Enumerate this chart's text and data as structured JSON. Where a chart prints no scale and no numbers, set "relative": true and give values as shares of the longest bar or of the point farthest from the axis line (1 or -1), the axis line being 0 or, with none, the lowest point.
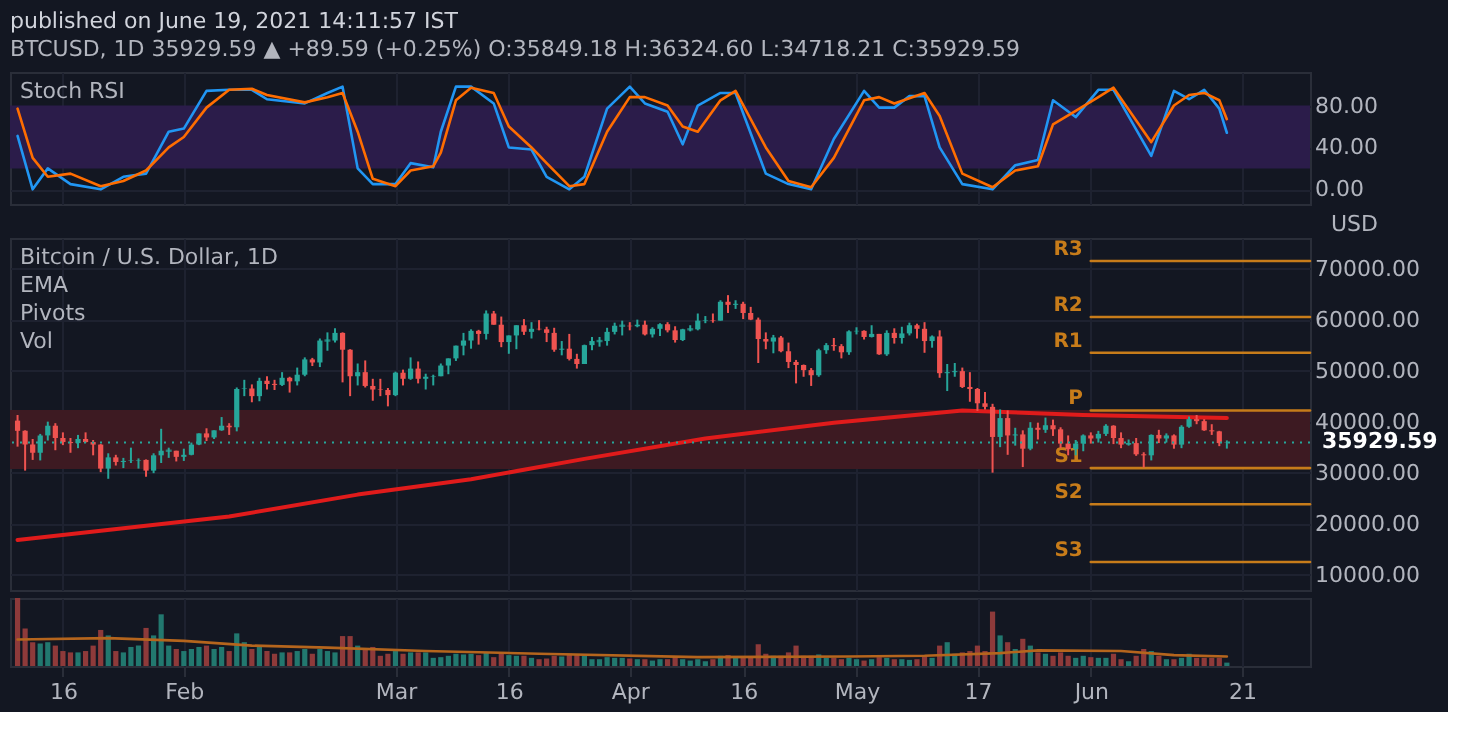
{
  "chart_data": [
    {
      "type": "line",
      "title": "published on June 19, 2021 14:11:57 IST",
      "subtitle": "BTCUSD, 1D  35929.59 ▲ +89.59 (+0.25%)  O:35849.18  H:36324.60  L:34718.21  C:35929.59",
      "annotations": [
        "Stoch RSI"
      ],
      "xlim": [
        "2021-01-09",
        "2021-06-30"
      ],
      "xticks": [
        {
          "value": "2021-01-16",
          "label": null
        },
        {
          "value": "2021-02-01",
          "label": null
        },
        {
          "value": "2021-03-01",
          "label": null
        },
        {
          "value": "2021-03-16",
          "label": null
        },
        {
          "value": "2021-04-01",
          "label": null
        },
        {
          "value": "2021-04-16",
          "label": null
        },
        {
          "value": "2021-05-01",
          "label": null
        },
        {
          "value": "2021-05-17",
          "label": null
        },
        {
          "value": "2021-06-01",
          "label": null
        },
        {
          "value": "2021-06-21",
          "label": null
        }
      ],
      "ylim": [
        -14,
        112
      ],
      "yticks": [
        {
          "value": 0,
          "label": "0.00"
        },
        {
          "value": 40,
          "label": "40.00"
        },
        {
          "value": 80,
          "label": "80.00"
        }
      ],
      "tick_labels": "y",
      "grid": true,
      "bands": [
        {
          "axis": "y",
          "from": 20,
          "to": 80,
          "color": "#2b1c4a"
        }
      ],
      "series": [
        {
          "color": "#2196f3",
          "x": [
            "2021-01-10",
            "2021-01-12",
            "2021-01-14",
            "2021-01-17",
            "2021-01-21",
            "2021-01-24",
            "2021-01-27",
            "2021-01-30",
            "2021-02-01",
            "2021-02-04",
            "2021-02-07",
            "2021-02-10",
            "2021-02-12",
            "2021-02-17",
            "2021-02-20",
            "2021-02-22",
            "2021-02-24",
            "2021-02-26",
            "2021-03-01",
            "2021-03-03",
            "2021-03-06",
            "2021-03-07",
            "2021-03-09",
            "2021-03-11",
            "2021-03-14",
            "2021-03-16",
            "2021-03-19",
            "2021-03-21",
            "2021-03-24",
            "2021-03-26",
            "2021-03-29",
            "2021-04-01",
            "2021-04-03",
            "2021-04-06",
            "2021-04-08",
            "2021-04-10",
            "2021-04-13",
            "2021-04-15",
            "2021-04-19",
            "2021-04-22",
            "2021-04-25",
            "2021-04-28",
            "2021-05-02",
            "2021-05-04",
            "2021-05-06",
            "2021-05-08",
            "2021-05-10",
            "2021-05-12",
            "2021-05-15",
            "2021-05-19",
            "2021-05-22",
            "2021-05-25",
            "2021-05-27",
            "2021-05-30",
            "2021-06-02",
            "2021-06-04",
            "2021-06-09",
            "2021-06-12",
            "2021-06-14",
            "2021-06-16",
            "2021-06-18",
            "2021-06-19"
          ],
          "values": [
            51,
            0,
            20,
            5,
            0,
            12,
            15,
            55,
            58,
            94,
            95,
            95,
            86,
            82,
            92,
            98,
            20,
            5,
            5,
            25,
            21,
            55,
            98,
            98,
            82,
            40,
            38,
            12,
            0,
            12,
            77,
            98,
            82,
            74,
            43,
            80,
            92,
            92,
            15,
            5,
            0,
            48,
            94,
            78,
            78,
            89,
            89,
            40,
            5,
            0,
            23,
            28,
            85,
            69,
            95,
            95,
            32,
            94,
            86,
            95,
            77,
            54
          ]
        },
        {
          "color": "#ff6d00",
          "x": [
            "2021-01-10",
            "2021-01-12",
            "2021-01-14",
            "2021-01-17",
            "2021-01-21",
            "2021-01-24",
            "2021-01-27",
            "2021-01-30",
            "2021-02-01",
            "2021-02-04",
            "2021-02-07",
            "2021-02-10",
            "2021-02-12",
            "2021-02-17",
            "2021-02-20",
            "2021-02-22",
            "2021-02-24",
            "2021-02-26",
            "2021-03-01",
            "2021-03-03",
            "2021-03-06",
            "2021-03-07",
            "2021-03-09",
            "2021-03-11",
            "2021-03-14",
            "2021-03-16",
            "2021-03-19",
            "2021-03-21",
            "2021-03-24",
            "2021-03-26",
            "2021-03-29",
            "2021-04-01",
            "2021-04-03",
            "2021-04-06",
            "2021-04-08",
            "2021-04-10",
            "2021-04-13",
            "2021-04-15",
            "2021-04-19",
            "2021-04-22",
            "2021-04-25",
            "2021-04-28",
            "2021-05-02",
            "2021-05-04",
            "2021-05-06",
            "2021-05-08",
            "2021-05-10",
            "2021-05-12",
            "2021-05-15",
            "2021-05-19",
            "2021-05-22",
            "2021-05-25",
            "2021-05-27",
            "2021-05-30",
            "2021-06-02",
            "2021-06-04",
            "2021-06-09",
            "2021-06-12",
            "2021-06-14",
            "2021-06-16",
            "2021-06-18",
            "2021-06-19"
          ],
          "values": [
            77,
            30,
            12,
            15,
            3,
            8,
            18,
            40,
            50,
            78,
            95,
            96,
            90,
            83,
            88,
            92,
            55,
            10,
            3,
            18,
            22,
            35,
            85,
            97,
            92,
            60,
            40,
            25,
            3,
            5,
            55,
            88,
            88,
            80,
            60,
            55,
            85,
            94,
            40,
            8,
            2,
            30,
            85,
            88,
            82,
            87,
            92,
            70,
            15,
            2,
            18,
            22,
            62,
            75,
            88,
            97,
            45,
            80,
            90,
            92,
            85,
            67
          ]
        }
      ]
    },
    {
      "type": "candlestick",
      "title": "Bitcoin / U.S. Dollar, 1D",
      "annotations": [
        "EMA",
        "Pivots",
        "Vol"
      ],
      "ylabel": "USD",
      "xlim": [
        "2021-01-09",
        "2021-06-30"
      ],
      "xticks": [
        {
          "value": "2021-01-16",
          "label": null
        },
        {
          "value": "2021-02-01",
          "label": null
        },
        {
          "value": "2021-03-01",
          "label": null
        },
        {
          "value": "2021-03-16",
          "label": null
        },
        {
          "value": "2021-04-01",
          "label": null
        },
        {
          "value": "2021-04-16",
          "label": null
        },
        {
          "value": "2021-05-01",
          "label": null
        },
        {
          "value": "2021-05-17",
          "label": null
        },
        {
          "value": "2021-06-01",
          "label": null
        },
        {
          "value": "2021-06-21",
          "label": null
        }
      ],
      "ylim": [
        7000,
        76000
      ],
      "yticks": [
        {
          "value": 10000,
          "label": "10000.00"
        },
        {
          "value": 20000,
          "label": "20000.00"
        },
        {
          "value": 30000,
          "label": "30000.00"
        },
        {
          "value": 40000,
          "label": "40000.00"
        },
        {
          "value": 50000,
          "label": "50000.00"
        },
        {
          "value": 60000,
          "label": "60000.00"
        },
        {
          "value": 70000,
          "label": "70000.00"
        }
      ],
      "tick_labels": "y",
      "grid": true,
      "bands": [
        {
          "axis": "y",
          "from": 30700,
          "to": 42300,
          "color": "#3d1a22"
        }
      ],
      "ref_lines": [
        {
          "axis": "y",
          "value": 35929.59,
          "label": "35929.59",
          "color": "#26a69a",
          "line_style": "dotted"
        }
      ],
      "x": [
        "2021-01-10",
        "2021-01-11",
        "2021-01-12",
        "2021-01-13",
        "2021-01-14",
        "2021-01-15",
        "2021-01-16",
        "2021-01-17",
        "2021-01-18",
        "2021-01-19",
        "2021-01-20",
        "2021-01-21",
        "2021-01-22",
        "2021-01-23",
        "2021-01-24",
        "2021-01-25",
        "2021-01-26",
        "2021-01-27",
        "2021-01-28",
        "2021-01-29",
        "2021-01-30",
        "2021-01-31",
        "2021-02-01",
        "2021-02-02",
        "2021-02-03",
        "2021-02-04",
        "2021-02-05",
        "2021-02-06",
        "2021-02-07",
        "2021-02-08",
        "2021-02-09",
        "2021-02-10",
        "2021-02-11",
        "2021-02-12",
        "2021-02-13",
        "2021-02-14",
        "2021-02-15",
        "2021-02-16",
        "2021-02-17",
        "2021-02-18",
        "2021-02-19",
        "2021-02-20",
        "2021-02-21",
        "2021-02-22",
        "2021-02-23",
        "2021-02-24",
        "2021-02-25",
        "2021-02-26",
        "2021-02-27",
        "2021-02-28",
        "2021-03-01",
        "2021-03-02",
        "2021-03-03",
        "2021-03-04",
        "2021-03-05",
        "2021-03-06",
        "2021-03-07",
        "2021-03-08",
        "2021-03-09",
        "2021-03-10",
        "2021-03-11",
        "2021-03-12",
        "2021-03-13",
        "2021-03-14",
        "2021-03-15",
        "2021-03-16",
        "2021-03-17",
        "2021-03-18",
        "2021-03-19",
        "2021-03-20",
        "2021-03-21",
        "2021-03-22",
        "2021-03-23",
        "2021-03-24",
        "2021-03-25",
        "2021-03-26",
        "2021-03-27",
        "2021-03-28",
        "2021-03-29",
        "2021-03-30",
        "2021-03-31",
        "2021-04-01",
        "2021-04-02",
        "2021-04-03",
        "2021-04-04",
        "2021-04-05",
        "2021-04-06",
        "2021-04-07",
        "2021-04-08",
        "2021-04-09",
        "2021-04-10",
        "2021-04-11",
        "2021-04-12",
        "2021-04-13",
        "2021-04-14",
        "2021-04-15",
        "2021-04-16",
        "2021-04-17",
        "2021-04-18",
        "2021-04-19",
        "2021-04-20",
        "2021-04-21",
        "2021-04-22",
        "2021-04-23",
        "2021-04-24",
        "2021-04-25",
        "2021-04-26",
        "2021-04-27",
        "2021-04-28",
        "2021-04-29",
        "2021-04-30",
        "2021-05-01",
        "2021-05-02",
        "2021-05-03",
        "2021-05-04",
        "2021-05-05",
        "2021-05-06",
        "2021-05-07",
        "2021-05-08",
        "2021-05-09",
        "2021-05-10",
        "2021-05-11",
        "2021-05-12",
        "2021-05-13",
        "2021-05-14",
        "2021-05-15",
        "2021-05-16",
        "2021-05-17",
        "2021-05-18",
        "2021-05-19",
        "2021-05-20",
        "2021-05-21",
        "2021-05-22",
        "2021-05-23",
        "2021-05-24",
        "2021-05-25",
        "2021-05-26",
        "2021-05-27",
        "2021-05-28",
        "2021-05-29",
        "2021-05-30",
        "2021-05-31",
        "2021-06-01",
        "2021-06-02",
        "2021-06-03",
        "2021-06-04",
        "2021-06-05",
        "2021-06-06",
        "2021-06-07",
        "2021-06-08",
        "2021-06-09",
        "2021-06-10",
        "2021-06-11",
        "2021-06-12",
        "2021-06-13",
        "2021-06-14",
        "2021-06-15",
        "2021-06-16",
        "2021-06-17",
        "2021-06-18",
        "2021-06-19"
      ],
      "ohlc": [
        [
          40200,
          41300,
          35100,
          38200
        ],
        [
          38200,
          38300,
          30400,
          35500
        ],
        [
          35500,
          36600,
          32500,
          33900
        ],
        [
          33900,
          37600,
          32400,
          37300
        ],
        [
          37300,
          40000,
          36300,
          39200
        ],
        [
          39200,
          39700,
          34400,
          36800
        ],
        [
          36800,
          37900,
          35400,
          36000
        ],
        [
          36000,
          36800,
          33900,
          35800
        ],
        [
          35800,
          37400,
          34800,
          36600
        ],
        [
          36600,
          37900,
          35900,
          36000
        ],
        [
          36000,
          36400,
          33400,
          35500
        ],
        [
          35500,
          35600,
          30100,
          30800
        ],
        [
          30800,
          33800,
          28800,
          33000
        ],
        [
          33000,
          33500,
          31400,
          32100
        ],
        [
          32100,
          32900,
          30900,
          32300
        ],
        [
          32300,
          34900,
          31900,
          32400
        ],
        [
          32400,
          32800,
          30800,
          32500
        ],
        [
          32500,
          32600,
          29200,
          30400
        ],
        [
          30400,
          33800,
          29900,
          33400
        ],
        [
          33400,
          38600,
          31900,
          34300
        ],
        [
          34300,
          34900,
          32900,
          34300
        ],
        [
          34300,
          34300,
          32200,
          33100
        ],
        [
          33100,
          34700,
          32300,
          33500
        ],
        [
          33500,
          35900,
          33400,
          35500
        ],
        [
          35500,
          37700,
          35400,
          37700
        ],
        [
          37700,
          38700,
          36200,
          36900
        ],
        [
          36900,
          38300,
          36600,
          38300
        ],
        [
          38300,
          40900,
          38200,
          39200
        ],
        [
          39200,
          39700,
          37400,
          38900
        ],
        [
          38900,
          46700,
          38100,
          46400
        ],
        [
          46400,
          48200,
          45000,
          46500
        ],
        [
          46500,
          47300,
          43800,
          45000
        ],
        [
          45000,
          48600,
          44000,
          48000
        ],
        [
          48000,
          48900,
          46300,
          47400
        ],
        [
          47400,
          48200,
          46200,
          47200
        ],
        [
          47200,
          49700,
          47000,
          48600
        ],
        [
          48600,
          48800,
          45700,
          47900
        ],
        [
          47900,
          50600,
          47100,
          49200
        ],
        [
          49200,
          52600,
          48900,
          52200
        ],
        [
          52200,
          52500,
          50900,
          51600
        ],
        [
          51600,
          56300,
          50700,
          55900
        ],
        [
          55900,
          57500,
          53900,
          55900
        ],
        [
          55900,
          58300,
          55500,
          57400
        ],
        [
          57400,
          57500,
          47700,
          54100
        ],
        [
          54100,
          54200,
          45000,
          48900
        ],
        [
          48900,
          51400,
          47100,
          49700
        ],
        [
          49700,
          52000,
          46700,
          47000
        ],
        [
          47000,
          48400,
          44100,
          46300
        ],
        [
          46300,
          48400,
          45000,
          46200
        ],
        [
          46200,
          46600,
          43000,
          45200
        ],
        [
          45200,
          49800,
          45000,
          49600
        ],
        [
          49600,
          50200,
          47100,
          48400
        ],
        [
          48400,
          52600,
          48200,
          50400
        ],
        [
          50400,
          51800,
          47500,
          48400
        ],
        [
          48400,
          49400,
          46300,
          48800
        ],
        [
          48800,
          49200,
          47100,
          48900
        ],
        [
          48900,
          51400,
          48900,
          51000
        ],
        [
          51000,
          52400,
          49300,
          52400
        ],
        [
          52400,
          54900,
          51900,
          54900
        ],
        [
          54900,
          57400,
          53000,
          55900
        ],
        [
          55900,
          58100,
          54300,
          57800
        ],
        [
          57800,
          58000,
          55100,
          57200
        ],
        [
          57200,
          61800,
          56100,
          61200
        ],
        [
          61200,
          61700,
          59000,
          59000
        ],
        [
          59000,
          60600,
          54600,
          55600
        ],
        [
          55600,
          56900,
          53300,
          56900
        ],
        [
          56900,
          58900,
          54200,
          58900
        ],
        [
          58900,
          60100,
          57000,
          57600
        ],
        [
          57600,
          59500,
          56300,
          58200
        ],
        [
          58200,
          59900,
          57900,
          58100
        ],
        [
          58100,
          58600,
          55600,
          57400
        ],
        [
          57400,
          58400,
          53700,
          54100
        ],
        [
          54100,
          55800,
          53000,
          54300
        ],
        [
          54300,
          57200,
          52000,
          52300
        ],
        [
          52300,
          53300,
          50400,
          51300
        ],
        [
          51300,
          55100,
          51300,
          55000
        ],
        [
          55000,
          56600,
          54000,
          55800
        ],
        [
          55800,
          56600,
          54700,
          55800
        ],
        [
          55800,
          58400,
          54900,
          57600
        ],
        [
          57600,
          59400,
          57100,
          58800
        ],
        [
          58800,
          59800,
          56900,
          58800
        ],
        [
          58800,
          59500,
          57900,
          58700
        ],
        [
          58700,
          60000,
          58500,
          59000
        ],
        [
          59000,
          59800,
          56900,
          57100
        ],
        [
          57100,
          58500,
          56500,
          58200
        ],
        [
          58200,
          59300,
          56800,
          59100
        ],
        [
          59100,
          59500,
          57500,
          57900
        ],
        [
          57900,
          58700,
          55500,
          56000
        ],
        [
          56000,
          58200,
          55800,
          58100
        ],
        [
          58100,
          58900,
          57700,
          58100
        ],
        [
          58100,
          61200,
          57900,
          59800
        ],
        [
          59800,
          60700,
          59300,
          59900
        ],
        [
          59900,
          61200,
          59400,
          59800
        ],
        [
          59800,
          63800,
          59800,
          63500
        ],
        [
          63500,
          64800,
          61300,
          62900
        ],
        [
          62900,
          63800,
          62100,
          63100
        ],
        [
          63100,
          63500,
          60100,
          61300
        ],
        [
          61300,
          62500,
          59900,
          60000
        ],
        [
          60000,
          60400,
          51500,
          56200
        ],
        [
          56200,
          57500,
          54200,
          55700
        ],
        [
          55700,
          57000,
          53400,
          56500
        ],
        [
          56500,
          56800,
          53600,
          53800
        ],
        [
          53800,
          55500,
          50500,
          51700
        ],
        [
          51700,
          52100,
          47500,
          51100
        ],
        [
          51100,
          51200,
          48800,
          50100
        ],
        [
          50100,
          50500,
          47000,
          49100
        ],
        [
          49100,
          54300,
          48800,
          54000
        ],
        [
          54000,
          55400,
          53300,
          55000
        ],
        [
          55000,
          56400,
          53900,
          54800
        ],
        [
          54800,
          55200,
          52400,
          53600
        ],
        [
          53600,
          57900,
          53100,
          57700
        ],
        [
          57700,
          58500,
          57100,
          57800
        ],
        [
          57800,
          57900,
          56100,
          56600
        ],
        [
          56600,
          58900,
          56500,
          57200
        ],
        [
          57200,
          57200,
          53100,
          53200
        ],
        [
          53200,
          57900,
          52900,
          57400
        ],
        [
          57400,
          58300,
          55300,
          56400
        ],
        [
          56400,
          58600,
          55300,
          57300
        ],
        [
          57300,
          59400,
          56900,
          58900
        ],
        [
          58900,
          59200,
          56300,
          58200
        ],
        [
          58200,
          59500,
          53500,
          55800
        ],
        [
          55800,
          56900,
          54500,
          56700
        ],
        [
          56700,
          57900,
          48600,
          49500
        ],
        [
          49500,
          51300,
          46000,
          49700
        ],
        [
          49700,
          51500,
          48800,
          49900
        ],
        [
          49900,
          50600,
          46600,
          46800
        ],
        [
          46800,
          49700,
          43900,
          46400
        ],
        [
          46400,
          46600,
          42100,
          43600
        ],
        [
          43600,
          45800,
          42400,
          42900
        ],
        [
          42900,
          43500,
          30000,
          37000
        ],
        [
          37000,
          42400,
          35000,
          40700
        ],
        [
          40700,
          42200,
          33500,
          37300
        ],
        [
          37300,
          38800,
          35300,
          37500
        ],
        [
          37500,
          38300,
          31100,
          34700
        ],
        [
          34700,
          39900,
          34400,
          38800
        ],
        [
          38800,
          39800,
          36500,
          38400
        ],
        [
          38400,
          40800,
          37800,
          39300
        ],
        [
          39300,
          40400,
          37200,
          38500
        ],
        [
          38500,
          38900,
          34800,
          35700
        ],
        [
          35700,
          37300,
          33400,
          34600
        ],
        [
          34600,
          36400,
          33400,
          35700
        ],
        [
          35700,
          37500,
          34200,
          37300
        ],
        [
          37300,
          37900,
          35700,
          36700
        ],
        [
          36700,
          38200,
          35900,
          37600
        ],
        [
          37600,
          39500,
          37200,
          39200
        ],
        [
          39200,
          39300,
          35600,
          36800
        ],
        [
          36800,
          37900,
          34800,
          35500
        ],
        [
          35500,
          36500,
          35300,
          35800
        ],
        [
          35800,
          36800,
          33300,
          33600
        ],
        [
          33600,
          34000,
          31000,
          33400
        ],
        [
          33400,
          37500,
          32400,
          37400
        ],
        [
          37400,
          38400,
          35800,
          36700
        ],
        [
          36700,
          37700,
          35900,
          37300
        ],
        [
          37300,
          37500,
          34700,
          35500
        ],
        [
          35500,
          39300,
          34800,
          39000
        ],
        [
          39000,
          41000,
          38800,
          40500
        ],
        [
          40500,
          41300,
          39500,
          40100
        ],
        [
          40100,
          40500,
          38200,
          38300
        ],
        [
          38300,
          39500,
          37400,
          38100
        ],
        [
          38100,
          38200,
          35200,
          35800
        ],
        [
          35849.18,
          36324.6,
          34718.21,
          35929.59
        ]
      ],
      "series": [
        {
          "type": "line",
          "color": "#e01b1b",
          "x": [
            "2021-01-10",
            "2021-02-07",
            "2021-02-24",
            "2021-03-11",
            "2021-03-26",
            "2021-04-11",
            "2021-04-28",
            "2021-05-15",
            "2021-05-31",
            "2021-06-19"
          ],
          "values": [
            16800,
            21400,
            25700,
            28700,
            32700,
            36700,
            39800,
            42200,
            41300,
            40700
          ]
        },
        {
          "type": "line",
          "name": "R3",
          "color": "#c77c1a",
          "x": [
            "2021-06-01",
            "2021-06-30"
          ],
          "values": [
            71500,
            71500
          ]
        },
        {
          "type": "line",
          "name": "R2",
          "color": "#c77c1a",
          "x": [
            "2021-06-01",
            "2021-06-30"
          ],
          "values": [
            60500,
            60500
          ]
        },
        {
          "type": "line",
          "name": "R1",
          "color": "#c77c1a",
          "x": [
            "2021-06-01",
            "2021-06-30"
          ],
          "values": [
            53500,
            53500
          ]
        },
        {
          "type": "line",
          "name": "P",
          "color": "#c77c1a",
          "x": [
            "2021-06-01",
            "2021-06-30"
          ],
          "values": [
            42200,
            42200
          ]
        },
        {
          "type": "line",
          "name": "S1",
          "color": "#c77c1a",
          "x": [
            "2021-06-01",
            "2021-06-30"
          ],
          "values": [
            30900,
            30900
          ]
        },
        {
          "type": "line",
          "name": "S2",
          "color": "#c77c1a",
          "x": [
            "2021-06-01",
            "2021-06-30"
          ],
          "values": [
            23800,
            23800
          ]
        },
        {
          "type": "line",
          "name": "S3",
          "color": "#c77c1a",
          "x": [
            "2021-06-01",
            "2021-06-30"
          ],
          "values": [
            12500,
            12500
          ]
        }
      ]
    },
    {
      "type": "bar",
      "relative": true,
      "tick_labels": "x",
      "grid": "x",
      "xlim": [
        "2021-01-09",
        "2021-06-30"
      ],
      "xticks": [
        {
          "value": "2021-01-16",
          "label": "16"
        },
        {
          "value": "2021-02-01",
          "label": "Feb"
        },
        {
          "value": "2021-03-01",
          "label": "Mar"
        },
        {
          "value": "2021-03-16",
          "label": "16"
        },
        {
          "value": "2021-04-01",
          "label": "Apr"
        },
        {
          "value": "2021-04-16",
          "label": "16"
        },
        {
          "value": "2021-05-01",
          "label": "May"
        },
        {
          "value": "2021-05-17",
          "label": "17"
        },
        {
          "value": "2021-06-01",
          "label": "Jun"
        },
        {
          "value": "2021-06-21",
          "label": "21"
        }
      ],
      "x": [
        "2021-01-10",
        "2021-01-11",
        "2021-01-12",
        "2021-01-13",
        "2021-01-14",
        "2021-01-15",
        "2021-01-16",
        "2021-01-17",
        "2021-01-18",
        "2021-01-19",
        "2021-01-20",
        "2021-01-21",
        "2021-01-22",
        "2021-01-23",
        "2021-01-24",
        "2021-01-25",
        "2021-01-26",
        "2021-01-27",
        "2021-01-28",
        "2021-01-29",
        "2021-01-30",
        "2021-01-31",
        "2021-02-01",
        "2021-02-02",
        "2021-02-03",
        "2021-02-04",
        "2021-02-05",
        "2021-02-06",
        "2021-02-07",
        "2021-02-08",
        "2021-02-09",
        "2021-02-10",
        "2021-02-11",
        "2021-02-12",
        "2021-02-13",
        "2021-02-14",
        "2021-02-15",
        "2021-02-16",
        "2021-02-17",
        "2021-02-18",
        "2021-02-19",
        "2021-02-20",
        "2021-02-21",
        "2021-02-22",
        "2021-02-23",
        "2021-02-24",
        "2021-02-25",
        "2021-02-26",
        "2021-02-27",
        "2021-02-28",
        "2021-03-01",
        "2021-03-02",
        "2021-03-03",
        "2021-03-04",
        "2021-03-05",
        "2021-03-06",
        "2021-03-07",
        "2021-03-08",
        "2021-03-09",
        "2021-03-10",
        "2021-03-11",
        "2021-03-12",
        "2021-03-13",
        "2021-03-14",
        "2021-03-15",
        "2021-03-16",
        "2021-03-17",
        "2021-03-18",
        "2021-03-19",
        "2021-03-20",
        "2021-03-21",
        "2021-03-22",
        "2021-03-23",
        "2021-03-24",
        "2021-03-25",
        "2021-03-26",
        "2021-03-27",
        "2021-03-28",
        "2021-03-29",
        "2021-03-30",
        "2021-03-31",
        "2021-04-01",
        "2021-04-02",
        "2021-04-03",
        "2021-04-04",
        "2021-04-05",
        "2021-04-06",
        "2021-04-07",
        "2021-04-08",
        "2021-04-09",
        "2021-04-10",
        "2021-04-11",
        "2021-04-12",
        "2021-04-13",
        "2021-04-14",
        "2021-04-15",
        "2021-04-16",
        "2021-04-17",
        "2021-04-18",
        "2021-04-19",
        "2021-04-20",
        "2021-04-21",
        "2021-04-22",
        "2021-04-23",
        "2021-04-24",
        "2021-04-25",
        "2021-04-26",
        "2021-04-27",
        "2021-04-28",
        "2021-04-29",
        "2021-04-30",
        "2021-05-01",
        "2021-05-02",
        "2021-05-03",
        "2021-05-04",
        "2021-05-05",
        "2021-05-06",
        "2021-05-07",
        "2021-05-08",
        "2021-05-09",
        "2021-05-10",
        "2021-05-11",
        "2021-05-12",
        "2021-05-13",
        "2021-05-14",
        "2021-05-15",
        "2021-05-16",
        "2021-05-17",
        "2021-05-18",
        "2021-05-19",
        "2021-05-20",
        "2021-05-21",
        "2021-05-22",
        "2021-05-23",
        "2021-05-24",
        "2021-05-25",
        "2021-05-26",
        "2021-05-27",
        "2021-05-28",
        "2021-05-29",
        "2021-05-30",
        "2021-05-31",
        "2021-06-01",
        "2021-06-02",
        "2021-06-03",
        "2021-06-04",
        "2021-06-05",
        "2021-06-06",
        "2021-06-07",
        "2021-06-08",
        "2021-06-09",
        "2021-06-10",
        "2021-06-11",
        "2021-06-12",
        "2021-06-13",
        "2021-06-14",
        "2021-06-15",
        "2021-06-16",
        "2021-06-17",
        "2021-06-18",
        "2021-06-19"
      ],
      "values": [
        1.0,
        0.55,
        0.35,
        0.33,
        0.35,
        0.3,
        0.22,
        0.2,
        0.2,
        0.22,
        0.3,
        0.53,
        0.45,
        0.22,
        0.2,
        0.28,
        0.3,
        0.56,
        0.45,
        0.76,
        0.3,
        0.25,
        0.22,
        0.25,
        0.28,
        0.3,
        0.25,
        0.28,
        0.22,
        0.48,
        0.35,
        0.25,
        0.28,
        0.22,
        0.18,
        0.2,
        0.2,
        0.22,
        0.25,
        0.18,
        0.25,
        0.22,
        0.2,
        0.44,
        0.44,
        0.3,
        0.25,
        0.28,
        0.15,
        0.18,
        0.22,
        0.18,
        0.2,
        0.2,
        0.2,
        0.12,
        0.13,
        0.15,
        0.18,
        0.17,
        0.18,
        0.16,
        0.2,
        0.13,
        0.18,
        0.16,
        0.15,
        0.15,
        0.12,
        0.1,
        0.11,
        0.15,
        0.14,
        0.18,
        0.17,
        0.15,
        0.1,
        0.1,
        0.13,
        0.12,
        0.12,
        0.11,
        0.1,
        0.1,
        0.08,
        0.1,
        0.1,
        0.13,
        0.1,
        0.08,
        0.1,
        0.07,
        0.1,
        0.15,
        0.16,
        0.12,
        0.13,
        0.12,
        0.32,
        0.18,
        0.15,
        0.15,
        0.2,
        0.3,
        0.15,
        0.15,
        0.17,
        0.12,
        0.12,
        0.1,
        0.12,
        0.1,
        0.08,
        0.1,
        0.13,
        0.12,
        0.1,
        0.1,
        0.09,
        0.1,
        0.15,
        0.12,
        0.3,
        0.35,
        0.18,
        0.2,
        0.22,
        0.3,
        0.22,
        0.8,
        0.45,
        0.35,
        0.25,
        0.4,
        0.3,
        0.2,
        0.18,
        0.15,
        0.2,
        0.15,
        0.12,
        0.15,
        0.13,
        0.12,
        0.12,
        0.18,
        0.1,
        0.07,
        0.15,
        0.25,
        0.22,
        0.15,
        0.1,
        0.1,
        0.12,
        0.18,
        0.12,
        0.12,
        0.12,
        0.12,
        0.05
      ],
      "colors": [
        "#8e3a3a",
        "#8e3a3a",
        "#8e3a3a",
        "#22786f",
        "#22786f",
        "#8e3a3a",
        "#8e3a3a",
        "#8e3a3a",
        "#22786f",
        "#8e3a3a",
        "#8e3a3a",
        "#8e3a3a",
        "#22786f",
        "#8e3a3a",
        "#22786f",
        "#22786f",
        "#22786f",
        "#8e3a3a",
        "#22786f",
        "#22786f",
        "#22786f",
        "#8e3a3a",
        "#22786f",
        "#22786f",
        "#22786f",
        "#8e3a3a",
        "#22786f",
        "#22786f",
        "#8e3a3a",
        "#22786f",
        "#22786f",
        "#8e3a3a",
        "#22786f",
        "#8e3a3a",
        "#8e3a3a",
        "#22786f",
        "#8e3a3a",
        "#22786f",
        "#22786f",
        "#8e3a3a",
        "#22786f",
        "#22786f",
        "#22786f",
        "#8e3a3a",
        "#8e3a3a",
        "#22786f",
        "#8e3a3a",
        "#8e3a3a",
        "#8e3a3a",
        "#8e3a3a",
        "#22786f",
        "#8e3a3a",
        "#22786f",
        "#8e3a3a",
        "#22786f",
        "#22786f",
        "#22786f",
        "#22786f",
        "#22786f",
        "#22786f",
        "#22786f",
        "#8e3a3a",
        "#22786f",
        "#8e3a3a",
        "#8e3a3a",
        "#22786f",
        "#22786f",
        "#8e3a3a",
        "#22786f",
        "#8e3a3a",
        "#8e3a3a",
        "#8e3a3a",
        "#22786f",
        "#8e3a3a",
        "#8e3a3a",
        "#22786f",
        "#22786f",
        "#22786f",
        "#22786f",
        "#22786f",
        "#22786f",
        "#8e3a3a",
        "#22786f",
        "#8e3a3a",
        "#22786f",
        "#22786f",
        "#8e3a3a",
        "#8e3a3a",
        "#22786f",
        "#22786f",
        "#22786f",
        "#22786f",
        "#8e3a3a",
        "#22786f",
        "#8e3a3a",
        "#22786f",
        "#8e3a3a",
        "#8e3a3a",
        "#8e3a3a",
        "#8e3a3a",
        "#22786f",
        "#8e3a3a",
        "#8e3a3a",
        "#8e3a3a",
        "#8e3a3a",
        "#8e3a3a",
        "#22786f",
        "#22786f",
        "#8e3a3a",
        "#8e3a3a",
        "#22786f",
        "#22786f",
        "#8e3a3a",
        "#22786f",
        "#8e3a3a",
        "#22786f",
        "#8e3a3a",
        "#22786f",
        "#22786f",
        "#8e3a3a",
        "#8e3a3a",
        "#22786f",
        "#8e3a3a",
        "#22786f",
        "#22786f",
        "#8e3a3a",
        "#8e3a3a",
        "#8e3a3a",
        "#8e3a3a",
        "#8e3a3a",
        "#22786f",
        "#8e3a3a",
        "#22786f",
        "#8e3a3a",
        "#22786f",
        "#8e3a3a",
        "#22786f",
        "#8e3a3a",
        "#8e3a3a",
        "#8e3a3a",
        "#22786f",
        "#22786f",
        "#8e3a3a",
        "#22786f",
        "#22786f",
        "#8e3a3a",
        "#8e3a3a",
        "#22786f",
        "#8e3a3a",
        "#8e3a3a",
        "#22786f",
        "#8e3a3a",
        "#22786f",
        "#8e3a3a",
        "#22786f",
        "#22786f",
        "#8e3a3a",
        "#8e3a3a",
        "#8e3a3a",
        "#8e3a3a",
        "#22786f"
      ],
      "series": [
        {
          "type": "line",
          "color": "#b5651d",
          "x": [
            "2021-01-10",
            "2021-01-22",
            "2021-02-01",
            "2021-02-10",
            "2021-02-20",
            "2021-03-05",
            "2021-03-20",
            "2021-04-10",
            "2021-04-30",
            "2021-05-10",
            "2021-05-20",
            "2021-05-25",
            "2021-06-05",
            "2021-06-12",
            "2021-06-19"
          ],
          "values": [
            0.39,
            0.41,
            0.37,
            0.3,
            0.27,
            0.22,
            0.18,
            0.13,
            0.14,
            0.15,
            0.19,
            0.23,
            0.22,
            0.16,
            0.14
          ]
        }
      ]
    }
  ]
}
